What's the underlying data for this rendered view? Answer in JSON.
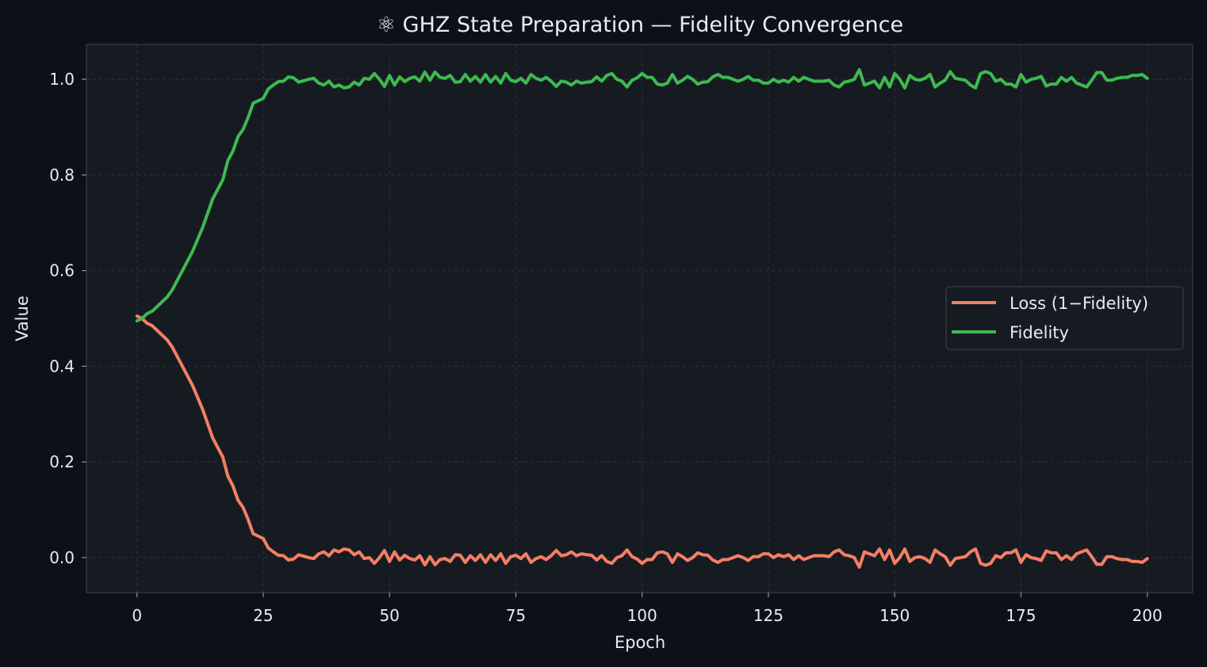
{
  "chart_data": {
    "type": "line",
    "title": "⚛  GHZ State Preparation — Fidelity Convergence",
    "xlabel": "Epoch",
    "ylabel": "Value",
    "xlim": [
      -10,
      209
    ],
    "ylim": [
      -0.073,
      1.073
    ],
    "x_ticks": [
      0,
      25,
      50,
      75,
      100,
      125,
      150,
      175,
      200
    ],
    "y_ticks": [
      0.0,
      0.2,
      0.4,
      0.6,
      0.8,
      1.0
    ],
    "y_tick_labels": [
      "0.0",
      "0.2",
      "0.4",
      "0.6",
      "0.8",
      "1.0"
    ],
    "grid": true,
    "legend_position": "center-right",
    "x_start": 0,
    "x_step": 1,
    "series": [
      {
        "name": "Loss (1−Fidelity)",
        "color": "#f47f64",
        "values": [
          0.505,
          0.5,
          0.49,
          0.485,
          0.475,
          0.465,
          0.455,
          0.44,
          0.42,
          0.4,
          0.38,
          0.36,
          0.335,
          0.31,
          0.28,
          0.25,
          0.23,
          0.21,
          0.17,
          0.15,
          0.12,
          0.105,
          0.08,
          0.05,
          0.045,
          0.04,
          0.02,
          0.012,
          0.005,
          0.004,
          -0.005,
          -0.003,
          0.006,
          0.003,
          0.0,
          -0.002,
          0.008,
          0.012,
          0.004,
          0.016,
          0.012,
          0.018,
          0.016,
          0.006,
          0.012,
          -0.002,
          0.0,
          -0.012,
          0.0,
          0.015,
          -0.008,
          0.012,
          -0.005,
          0.005,
          -0.002,
          -0.005,
          0.004,
          -0.015,
          0.002,
          -0.015,
          -0.004,
          -0.002,
          -0.008,
          0.006,
          0.005,
          -0.01,
          0.004,
          -0.006,
          0.006,
          -0.01,
          0.006,
          -0.006,
          0.008,
          -0.012,
          0.002,
          0.005,
          -0.002,
          0.008,
          -0.01,
          -0.002,
          0.002,
          -0.004,
          0.004,
          0.015,
          0.004,
          0.006,
          0.012,
          0.004,
          0.008,
          0.006,
          0.005,
          -0.005,
          0.004,
          -0.008,
          -0.012,
          0.0,
          0.004,
          0.016,
          0.002,
          -0.003,
          -0.012,
          -0.004,
          -0.004,
          0.01,
          0.012,
          0.008,
          -0.01,
          0.008,
          0.002,
          -0.006,
          0.0,
          0.01,
          0.006,
          0.005,
          -0.005,
          -0.01,
          -0.004,
          -0.004,
          0.0,
          0.004,
          0.0,
          -0.006,
          0.002,
          0.002,
          0.008,
          0.008,
          0.0,
          0.006,
          0.002,
          0.006,
          -0.004,
          0.004,
          -0.004,
          0.0,
          0.004,
          0.004,
          0.004,
          0.002,
          0.012,
          0.016,
          0.006,
          0.004,
          0.0,
          -0.02,
          0.012,
          0.008,
          0.004,
          0.018,
          -0.004,
          0.016,
          -0.012,
          0.0,
          0.018,
          -0.008,
          0.0,
          0.002,
          -0.002,
          -0.01,
          0.016,
          0.008,
          0.002,
          -0.016,
          -0.002,
          0.0,
          0.002,
          0.012,
          0.018,
          -0.012,
          -0.016,
          -0.012,
          0.004,
          0.0,
          0.01,
          0.01,
          0.016,
          -0.01,
          0.006,
          0.0,
          -0.002,
          -0.006,
          0.014,
          0.01,
          0.01,
          -0.004,
          0.004,
          -0.004,
          0.008,
          0.012,
          0.016,
          0.002,
          -0.014,
          -0.014,
          0.002,
          0.002,
          -0.002,
          -0.004,
          -0.004,
          -0.008,
          -0.008,
          -0.01,
          -0.002
        ]
      },
      {
        "name": "Fidelity",
        "color": "#3fb950",
        "values": [
          0.495,
          0.5,
          0.51,
          0.515,
          0.525,
          0.535,
          0.545,
          0.56,
          0.58,
          0.6,
          0.62,
          0.64,
          0.665,
          0.69,
          0.72,
          0.75,
          0.77,
          0.79,
          0.83,
          0.85,
          0.88,
          0.895,
          0.92,
          0.95,
          0.955,
          0.96,
          0.98,
          0.988,
          0.995,
          0.996,
          1.005,
          1.003,
          0.994,
          0.997,
          1.0,
          1.002,
          0.992,
          0.988,
          0.996,
          0.984,
          0.988,
          0.982,
          0.984,
          0.994,
          0.988,
          1.002,
          1.0,
          1.012,
          1.0,
          0.985,
          1.008,
          0.988,
          1.005,
          0.995,
          1.002,
          1.005,
          0.996,
          1.015,
          0.998,
          1.015,
          1.004,
          1.002,
          1.008,
          0.994,
          0.995,
          1.01,
          0.996,
          1.006,
          0.994,
          1.01,
          0.994,
          1.006,
          0.992,
          1.012,
          0.998,
          0.995,
          1.002,
          0.992,
          1.01,
          1.002,
          0.998,
          1.004,
          0.996,
          0.985,
          0.996,
          0.994,
          0.988,
          0.996,
          0.992,
          0.994,
          0.995,
          1.005,
          0.996,
          1.008,
          1.012,
          1.0,
          0.996,
          0.984,
          0.998,
          1.003,
          1.012,
          1.004,
          1.004,
          0.99,
          0.988,
          0.992,
          1.01,
          0.992,
          0.998,
          1.006,
          1.0,
          0.99,
          0.994,
          0.995,
          1.005,
          1.01,
          1.004,
          1.004,
          1.0,
          0.996,
          1.0,
          1.006,
          0.998,
          0.998,
          0.992,
          0.992,
          1.0,
          0.994,
          0.998,
          0.994,
          1.004,
          0.996,
          1.004,
          1.0,
          0.996,
          0.996,
          0.996,
          0.998,
          0.988,
          0.984,
          0.994,
          0.996,
          1.0,
          1.02,
          0.988,
          0.992,
          0.996,
          0.982,
          1.004,
          0.984,
          1.012,
          1.0,
          0.982,
          1.008,
          1.0,
          0.998,
          1.002,
          1.01,
          0.984,
          0.992,
          0.998,
          1.016,
          1.002,
          1.0,
          0.998,
          0.988,
          0.982,
          1.012,
          1.016,
          1.012,
          0.996,
          1.0,
          0.99,
          0.99,
          0.984,
          1.01,
          0.994,
          1.0,
          1.002,
          1.006,
          0.986,
          0.99,
          0.99,
          1.004,
          0.996,
          1.004,
          0.992,
          0.988,
          0.984,
          0.998,
          1.014,
          1.014,
          0.998,
          0.998,
          1.002,
          1.004,
          1.004,
          1.008,
          1.008,
          1.01,
          1.002
        ]
      }
    ]
  }
}
